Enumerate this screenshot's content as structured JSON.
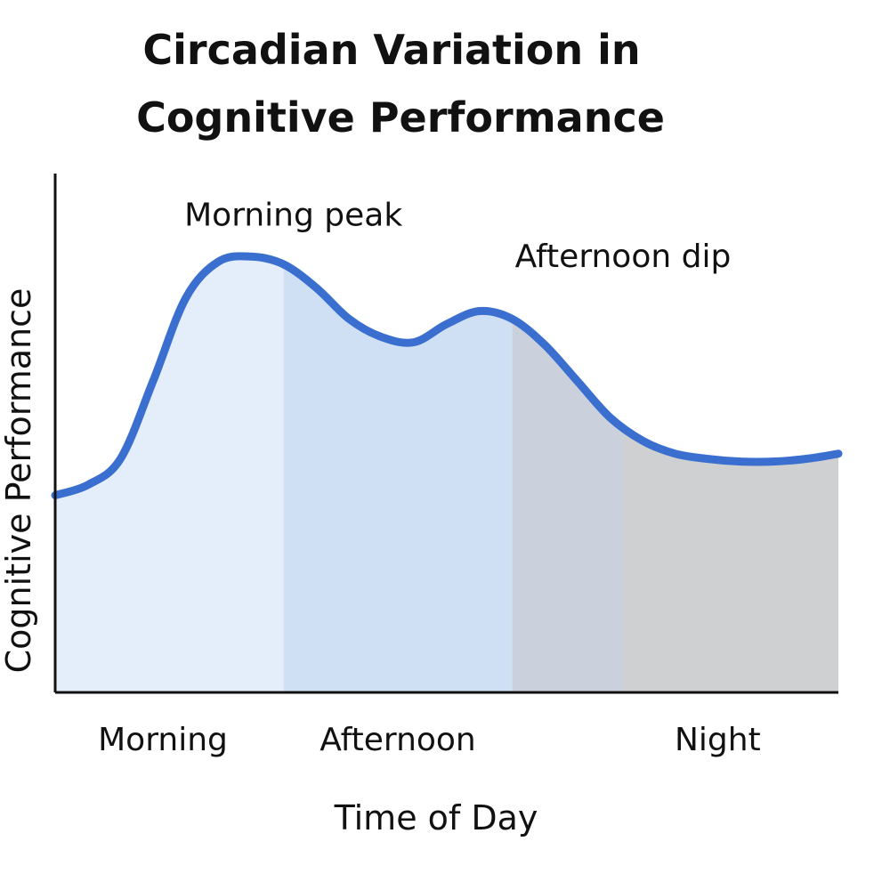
{
  "chart_data": {
    "type": "area",
    "title_lines": [
      "Circadian Variation in",
      "Cognitive Performance"
    ],
    "xlabel": "Time of Day",
    "ylabel": "Cognitive Performance",
    "x_range": [
      0,
      24
    ],
    "ylim": [
      0,
      10
    ],
    "grid": false,
    "x": [
      0,
      1,
      2,
      3,
      4,
      5,
      6,
      7,
      8,
      9,
      10,
      11,
      12,
      13,
      14,
      15,
      16,
      17,
      18,
      19,
      20,
      21,
      22,
      23,
      24
    ],
    "series": [
      {
        "name": "Cognitive Performance",
        "color": "#3a6fd0",
        "values": [
          3.8,
          4.0,
          4.5,
          6.0,
          7.6,
          8.3,
          8.4,
          8.25,
          7.8,
          7.2,
          6.85,
          6.75,
          7.1,
          7.35,
          7.2,
          6.7,
          6.0,
          5.3,
          4.85,
          4.6,
          4.5,
          4.45,
          4.45,
          4.5,
          4.6
        ]
      }
    ],
    "bands": [
      {
        "from": 0,
        "to": 7,
        "color": "#e4eefa"
      },
      {
        "from": 7,
        "to": 14,
        "color": "#d0e0f4"
      },
      {
        "from": 14,
        "to": 17.4,
        "color": "#cad1dc"
      },
      {
        "from": 17.4,
        "to": 24,
        "color": "#cfd0d2"
      }
    ],
    "period_labels": [
      {
        "label": "Morning",
        "at": 3.3
      },
      {
        "label": "Afternoon",
        "at": 10.5
      },
      {
        "label": "Night",
        "at": 20.3
      }
    ],
    "annotations": [
      {
        "text": "Morning peak",
        "x": 7.3,
        "y": 9.0
      },
      {
        "text": "Afternoon dip",
        "x": 17.4,
        "y": 8.2
      }
    ]
  }
}
